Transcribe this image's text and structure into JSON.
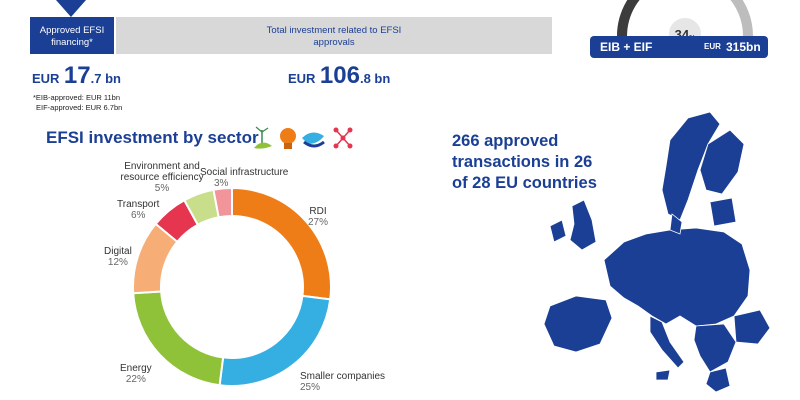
{
  "top": {
    "approved_label_line1": "Approved EFSI",
    "approved_label_line2": "financing*",
    "total_label_line1": "Total investment related to EFSI",
    "total_label_line2": "approvals",
    "efsi_amount": {
      "currency": "EUR",
      "whole": "17",
      "decimal": ".7 bn"
    },
    "total_amount": {
      "currency": "EUR",
      "whole": "106",
      "decimal": ".8 bn"
    },
    "footnote_eib": "*EIB-approved: EUR 11bn",
    "footnote_eif": "EIF-approved: EUR 6.7bn"
  },
  "gauge": {
    "percent_value": "34",
    "percent_sign": "%",
    "badge_left": "EIB + EIF",
    "badge_right_cur": "EUR",
    "badge_right_val": "315bn",
    "fill_fraction": 0.34,
    "colors": {
      "dark": "#3c3c3c",
      "light": "#bdbdbd",
      "badge": "#1b3f94"
    }
  },
  "sector": {
    "title": "EFSI investment by sector",
    "icons": [
      "wind-leaf-icon",
      "lightbulb-icon",
      "hands-icon",
      "network-icon"
    ]
  },
  "map": {
    "headline_line1": "266 approved",
    "headline_line2": "transactions in 26",
    "headline_line3": "of 28 EU countries",
    "color": "#1b3f94"
  },
  "chart_data": {
    "type": "pie",
    "donut": true,
    "title": "EFSI investment by sector",
    "categories": [
      "RDI",
      "Smaller companies",
      "Energy",
      "Digital",
      "Transport",
      "Environment and resource efficiency",
      "Social infrastructure"
    ],
    "values": [
      27,
      25,
      22,
      12,
      6,
      5,
      3
    ],
    "labels": [
      "27%",
      "25%",
      "22%",
      "12%",
      "6%",
      "5%",
      "3%"
    ],
    "colors": [
      "#ef7d17",
      "#35aee2",
      "#8fc238",
      "#f6ae76",
      "#e5354f",
      "#c8de8a",
      "#f2959b"
    ]
  }
}
